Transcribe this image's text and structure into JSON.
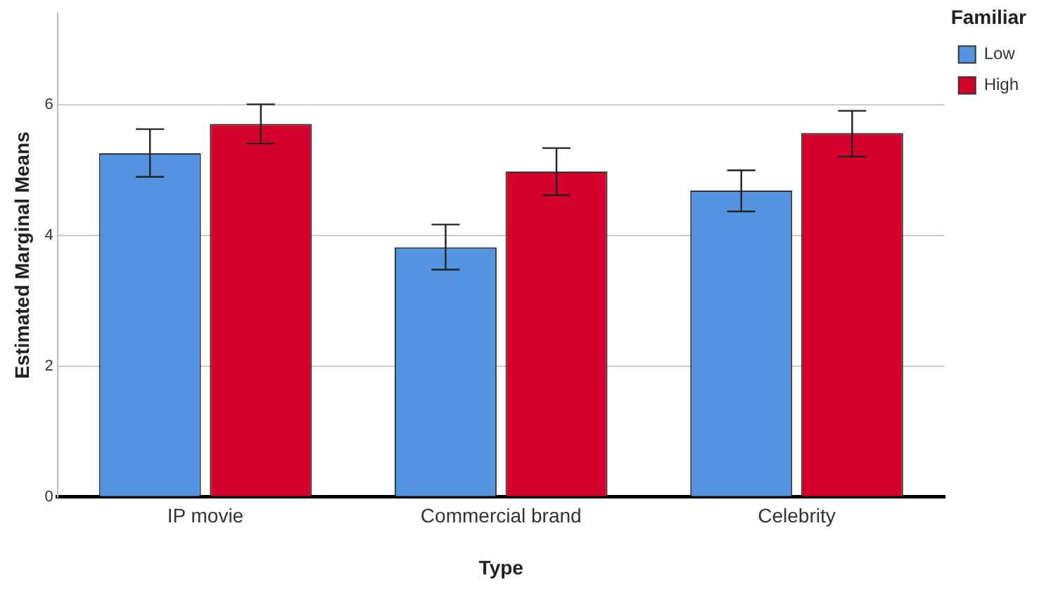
{
  "chart_data": {
    "type": "bar",
    "xlabel": "Type",
    "ylabel": "Estimated Marginal Means",
    "legend_title": "Familiar",
    "categories": [
      "IP movie",
      "Commercial brand",
      "Celebrity"
    ],
    "series": [
      {
        "name": "Low",
        "color": "#5594e0",
        "values": [
          5.26,
          3.82,
          4.69
        ],
        "errors": [
          [
            4.9,
            5.63
          ],
          [
            3.48,
            4.17
          ],
          [
            4.37,
            5.0
          ]
        ]
      },
      {
        "name": "High",
        "color": "#d4002c",
        "values": [
          5.71,
          4.98,
          5.57
        ],
        "errors": [
          [
            5.41,
            6.01
          ],
          [
            4.62,
            5.34
          ],
          [
            5.21,
            5.91
          ]
        ]
      }
    ],
    "ylim": [
      0,
      7.4
    ],
    "yticks": [
      0,
      2,
      4,
      6
    ],
    "grid": "y",
    "legend": "top right"
  }
}
